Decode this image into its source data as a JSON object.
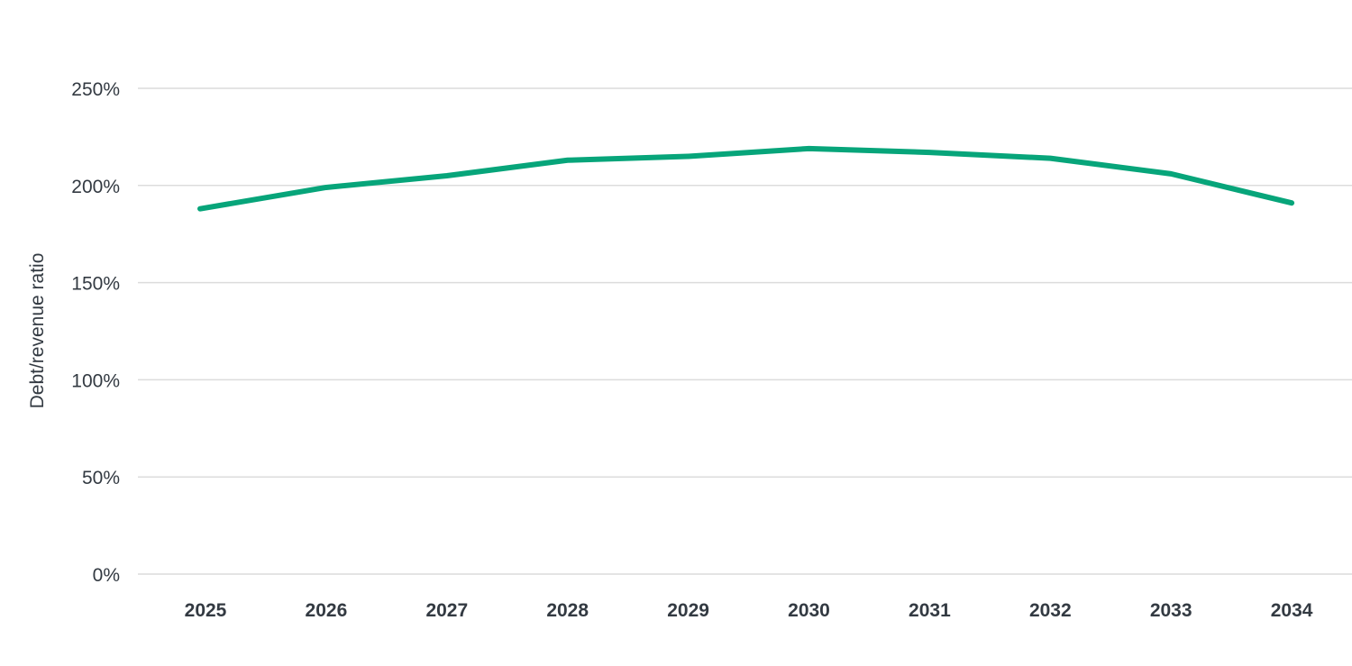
{
  "chart_data": {
    "type": "line",
    "title": "",
    "xlabel": "",
    "ylabel": "Debt/revenue ratio",
    "categories": [
      "2025",
      "2026",
      "2027",
      "2028",
      "2029",
      "2030",
      "2031",
      "2032",
      "2033",
      "2034"
    ],
    "series": [
      {
        "name": "Debt/revenue ratio",
        "color": "#07a57a",
        "values": [
          188,
          199,
          205,
          213,
          215,
          219,
          217,
          214,
          206,
          191
        ]
      }
    ],
    "yticks": [
      0,
      50,
      100,
      150,
      200,
      250
    ],
    "ytick_labels": [
      "0%",
      "50%",
      "100%",
      "150%",
      "200%",
      "250%"
    ],
    "ylim": [
      0,
      250
    ],
    "grid": true,
    "legend": "none"
  }
}
